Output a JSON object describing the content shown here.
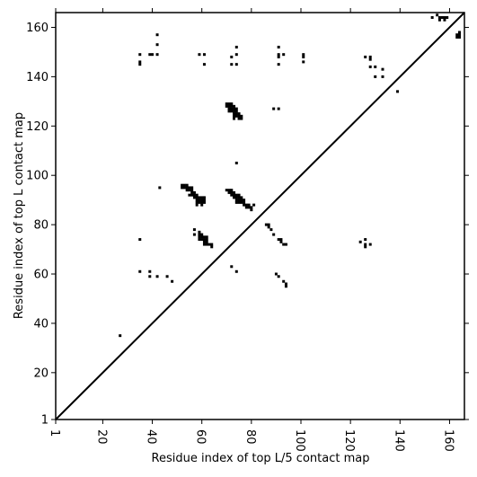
{
  "chart_data": {
    "type": "scatter",
    "xlabel": "Residue index of top L/5 contact map",
    "ylabel": "Residue index of top L contact map",
    "xlim": [
      1,
      166
    ],
    "ylim": [
      1,
      166
    ],
    "x_ticks": [
      1,
      20,
      40,
      60,
      80,
      100,
      120,
      140,
      160
    ],
    "y_ticks": [
      1,
      20,
      40,
      60,
      80,
      100,
      120,
      140,
      160
    ],
    "x_tick_rotation": 90,
    "grid": false,
    "diagonal_line": true,
    "colors": {
      "points": "#000000",
      "diagonal": "#000000",
      "frame": "#000000",
      "background": "#ffffff"
    },
    "series": [
      {
        "marker": "square",
        "points": [
          [
            27,
            35
          ],
          [
            35,
            149
          ],
          [
            35,
            146
          ],
          [
            35,
            145
          ],
          [
            39,
            149
          ],
          [
            40,
            149
          ],
          [
            42,
            157
          ],
          [
            42,
            153
          ],
          [
            42,
            149
          ],
          [
            59,
            149
          ],
          [
            61,
            149
          ],
          [
            61,
            145
          ],
          [
            72,
            148
          ],
          [
            72,
            145
          ],
          [
            74,
            152
          ],
          [
            74,
            149
          ],
          [
            74,
            145
          ],
          [
            91,
            152
          ],
          [
            91,
            149
          ],
          [
            91,
            148
          ],
          [
            91,
            145
          ],
          [
            93,
            149
          ],
          [
            101,
            149
          ],
          [
            101,
            148
          ],
          [
            101,
            146
          ],
          [
            126,
            148
          ],
          [
            128,
            148
          ],
          [
            128,
            147
          ],
          [
            128,
            144
          ],
          [
            130,
            144
          ],
          [
            130,
            140
          ],
          [
            133,
            143
          ],
          [
            133,
            140
          ],
          [
            139,
            134
          ],
          [
            153,
            164
          ],
          [
            155,
            165
          ],
          [
            156,
            164
          ],
          [
            156,
            163
          ],
          [
            157,
            164
          ],
          [
            158,
            164
          ],
          [
            158,
            163
          ],
          [
            159,
            164
          ],
          [
            163,
            156
          ],
          [
            163,
            157
          ],
          [
            164,
            156
          ],
          [
            164,
            157
          ],
          [
            164,
            158
          ],
          [
            70,
            129
          ],
          [
            71,
            129
          ],
          [
            72,
            129
          ],
          [
            70,
            128
          ],
          [
            71,
            128
          ],
          [
            72,
            128
          ],
          [
            73,
            128
          ],
          [
            71,
            127
          ],
          [
            72,
            127
          ],
          [
            73,
            127
          ],
          [
            74,
            127
          ],
          [
            71,
            126
          ],
          [
            72,
            126
          ],
          [
            73,
            126
          ],
          [
            74,
            126
          ],
          [
            73,
            125
          ],
          [
            74,
            125
          ],
          [
            75,
            125
          ],
          [
            73,
            124
          ],
          [
            74,
            124
          ],
          [
            75,
            124
          ],
          [
            76,
            124
          ],
          [
            73,
            123
          ],
          [
            75,
            123
          ],
          [
            76,
            123
          ],
          [
            89,
            127
          ],
          [
            91,
            127
          ],
          [
            74,
            105
          ],
          [
            43,
            95
          ],
          [
            52,
            96
          ],
          [
            53,
            96
          ],
          [
            54,
            96
          ],
          [
            52,
            95
          ],
          [
            53,
            95
          ],
          [
            54,
            95
          ],
          [
            55,
            95
          ],
          [
            56,
            95
          ],
          [
            54,
            94
          ],
          [
            55,
            94
          ],
          [
            56,
            94
          ],
          [
            56,
            93
          ],
          [
            57,
            93
          ],
          [
            55,
            92
          ],
          [
            56,
            92
          ],
          [
            57,
            92
          ],
          [
            58,
            92
          ],
          [
            57,
            91
          ],
          [
            58,
            91
          ],
          [
            59,
            91
          ],
          [
            60,
            91
          ],
          [
            61,
            91
          ],
          [
            58,
            90
          ],
          [
            59,
            90
          ],
          [
            60,
            90
          ],
          [
            61,
            90
          ],
          [
            58,
            89
          ],
          [
            59,
            89
          ],
          [
            60,
            89
          ],
          [
            61,
            89
          ],
          [
            58,
            88
          ],
          [
            60,
            88
          ],
          [
            70,
            94
          ],
          [
            71,
            94
          ],
          [
            72,
            94
          ],
          [
            71,
            93
          ],
          [
            72,
            93
          ],
          [
            73,
            93
          ],
          [
            72,
            92
          ],
          [
            73,
            92
          ],
          [
            74,
            92
          ],
          [
            75,
            92
          ],
          [
            73,
            91
          ],
          [
            74,
            91
          ],
          [
            75,
            91
          ],
          [
            76,
            91
          ],
          [
            74,
            90
          ],
          [
            75,
            90
          ],
          [
            76,
            90
          ],
          [
            77,
            90
          ],
          [
            74,
            89
          ],
          [
            75,
            89
          ],
          [
            76,
            89
          ],
          [
            77,
            89
          ],
          [
            77,
            88
          ],
          [
            78,
            88
          ],
          [
            79,
            88
          ],
          [
            81,
            88
          ],
          [
            78,
            87
          ],
          [
            79,
            87
          ],
          [
            80,
            87
          ],
          [
            80,
            86
          ],
          [
            86,
            80
          ],
          [
            87,
            80
          ],
          [
            87,
            79
          ],
          [
            88,
            78
          ],
          [
            89,
            76
          ],
          [
            91,
            74
          ],
          [
            92,
            74
          ],
          [
            92,
            73
          ],
          [
            93,
            72
          ],
          [
            94,
            72
          ],
          [
            35,
            74
          ],
          [
            57,
            78
          ],
          [
            57,
            76
          ],
          [
            59,
            77
          ],
          [
            59,
            76
          ],
          [
            60,
            76
          ],
          [
            59,
            75
          ],
          [
            60,
            75
          ],
          [
            61,
            75
          ],
          [
            62,
            75
          ],
          [
            59,
            74
          ],
          [
            60,
            74
          ],
          [
            61,
            74
          ],
          [
            62,
            74
          ],
          [
            61,
            73
          ],
          [
            62,
            73
          ],
          [
            61,
            72
          ],
          [
            62,
            72
          ],
          [
            63,
            72
          ],
          [
            64,
            72
          ],
          [
            64,
            71
          ],
          [
            35,
            61
          ],
          [
            39,
            61
          ],
          [
            39,
            59
          ],
          [
            42,
            59
          ],
          [
            46,
            59
          ],
          [
            48,
            57
          ],
          [
            72,
            63
          ],
          [
            74,
            61
          ],
          [
            90,
            60
          ],
          [
            91,
            59
          ],
          [
            93,
            57
          ],
          [
            94,
            56
          ],
          [
            94,
            55
          ],
          [
            124,
            73
          ],
          [
            126,
            74
          ],
          [
            126,
            72
          ],
          [
            126,
            71
          ],
          [
            128,
            72
          ]
        ]
      }
    ]
  }
}
